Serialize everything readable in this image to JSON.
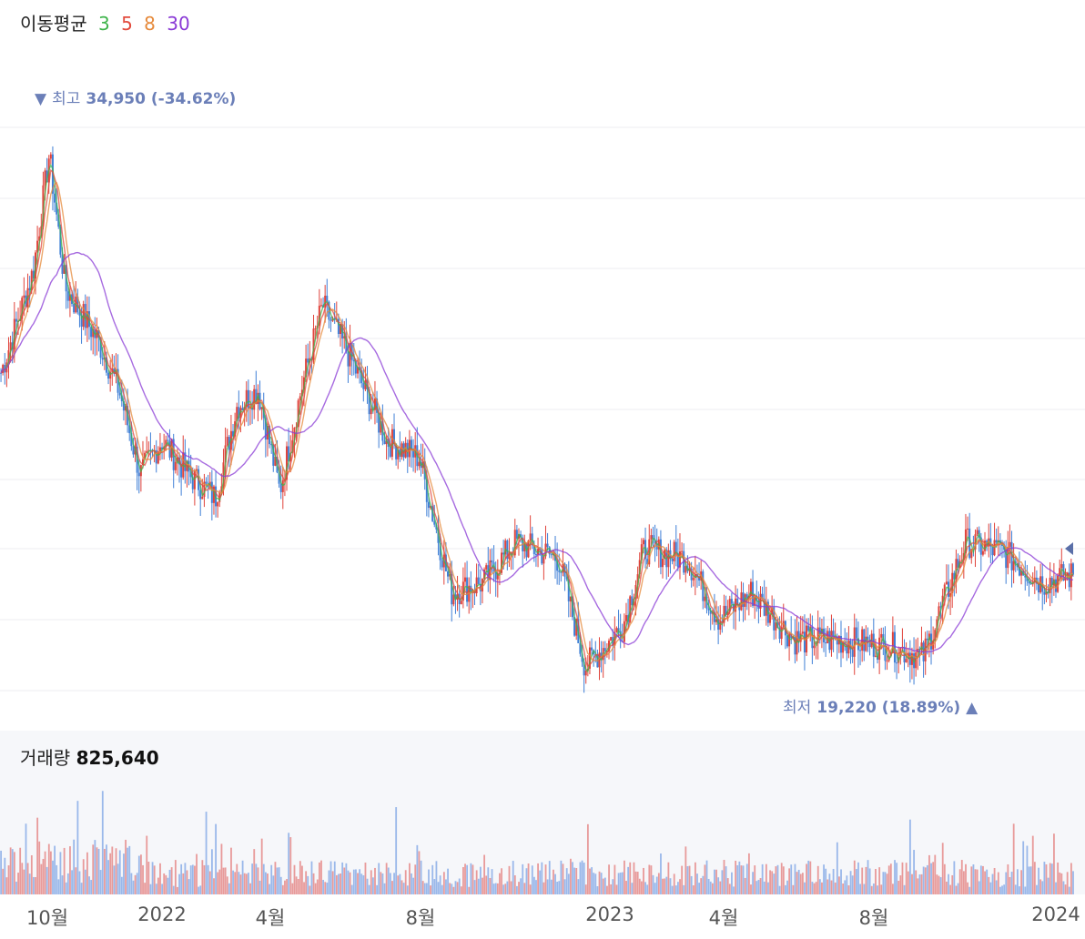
{
  "legend": {
    "title": "이동평균",
    "ma3": "3",
    "ma5": "5",
    "ma8": "8",
    "ma30": "30"
  },
  "colors": {
    "up": "#e0423a",
    "down": "#3f7fd6",
    "ma3": "#3fb44b",
    "ma5": "#e24a3c",
    "ma8": "#e6893a",
    "ma30": "#8a3ad6",
    "annot": "#6b7fb8",
    "vol_up": "#e89a9a",
    "vol_down": "#9ab8ea"
  },
  "high": {
    "marker": "▼",
    "label": "최고",
    "value": "34,950 (-34.62%)"
  },
  "low": {
    "label": "최저",
    "value": "19,220 (18.89%)",
    "marker": "▲"
  },
  "volume": {
    "label": "거래량",
    "value": "825,640"
  },
  "xaxis": [
    "10월",
    "2022",
    "4월",
    "8월",
    "2023",
    "4월",
    "8월",
    "2024"
  ],
  "chart_data": {
    "type": "candlestick",
    "title": "",
    "series": [
      {
        "name": "3"
      },
      {
        "name": "5"
      },
      {
        "name": "8"
      },
      {
        "name": "30"
      }
    ],
    "price_anchors": [
      {
        "x": 0.0,
        "p": 28500
      },
      {
        "x": 0.03,
        "p": 31500
      },
      {
        "x": 0.045,
        "p": 34950
      },
      {
        "x": 0.06,
        "p": 31000
      },
      {
        "x": 0.09,
        "p": 29500
      },
      {
        "x": 0.11,
        "p": 28000
      },
      {
        "x": 0.13,
        "p": 25500
      },
      {
        "x": 0.15,
        "p": 26500
      },
      {
        "x": 0.175,
        "p": 25500
      },
      {
        "x": 0.2,
        "p": 24800
      },
      {
        "x": 0.22,
        "p": 27500
      },
      {
        "x": 0.24,
        "p": 28000
      },
      {
        "x": 0.26,
        "p": 25000
      },
      {
        "x": 0.28,
        "p": 28000
      },
      {
        "x": 0.3,
        "p": 30500
      },
      {
        "x": 0.325,
        "p": 29000
      },
      {
        "x": 0.36,
        "p": 26500
      },
      {
        "x": 0.39,
        "p": 26000
      },
      {
        "x": 0.42,
        "p": 22000
      },
      {
        "x": 0.45,
        "p": 22300
      },
      {
        "x": 0.48,
        "p": 23500
      },
      {
        "x": 0.52,
        "p": 23000
      },
      {
        "x": 0.545,
        "p": 19800
      },
      {
        "x": 0.58,
        "p": 21000
      },
      {
        "x": 0.6,
        "p": 23300
      },
      {
        "x": 0.64,
        "p": 23000
      },
      {
        "x": 0.67,
        "p": 21200
      },
      {
        "x": 0.7,
        "p": 22000
      },
      {
        "x": 0.74,
        "p": 20600
      },
      {
        "x": 0.78,
        "p": 20600
      },
      {
        "x": 0.83,
        "p": 20400
      },
      {
        "x": 0.86,
        "p": 20100
      },
      {
        "x": 0.9,
        "p": 23500
      },
      {
        "x": 0.935,
        "p": 23200
      },
      {
        "x": 0.97,
        "p": 22300
      },
      {
        "x": 1.0,
        "p": 22500
      }
    ],
    "ylim": [
      18800,
      36300
    ]
  }
}
